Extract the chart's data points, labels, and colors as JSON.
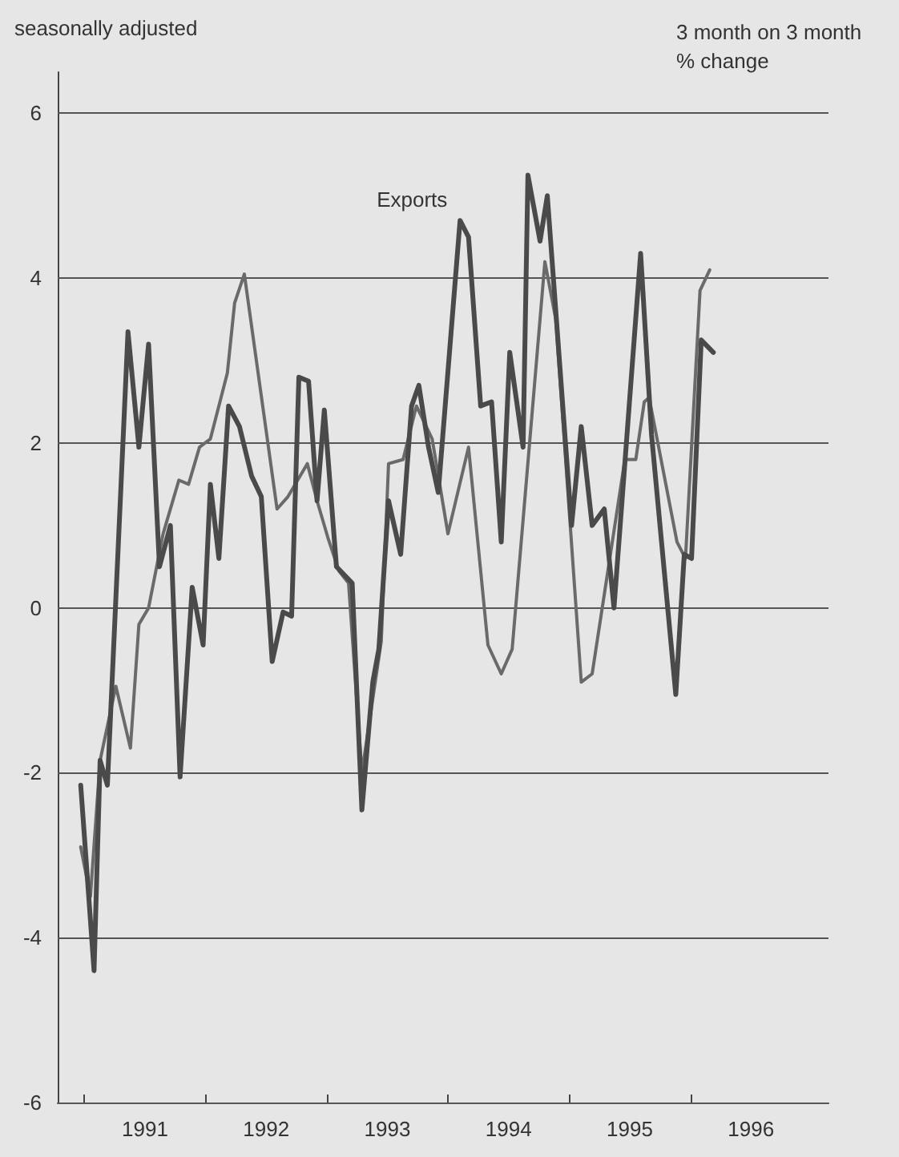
{
  "chart_data": {
    "type": "line",
    "subtitle": "seasonally adjusted",
    "ylabel": "3 month on 3 month % change",
    "series": [
      {
        "name": "Exports",
        "color": "#4a4a4a",
        "x": [
          1990.97,
          1991.08,
          1991.13,
          1991.19,
          1991.36,
          1991.45,
          1991.53,
          1991.62,
          1991.71,
          1991.79,
          1991.89,
          1991.98,
          1992.04,
          1992.11,
          1992.19,
          1992.28,
          1992.38,
          1992.46,
          1992.55,
          1992.64,
          1992.71,
          1992.77,
          1992.85,
          1992.92,
          1992.98,
          1993.08,
          1993.21,
          1993.29,
          1993.38,
          1993.43,
          1993.51,
          1993.61,
          1993.7,
          1993.76,
          1993.84,
          1993.92,
          1994.1,
          1994.17,
          1994.27,
          1994.36,
          1994.44,
          1994.51,
          1994.62,
          1994.66,
          1994.76,
          1994.82,
          1995.02,
          1995.1,
          1995.19,
          1995.29,
          1995.37,
          1995.59,
          1995.68,
          1995.88,
          1995.95,
          1996.01,
          1996.09,
          1996.19
        ],
        "values": [
          -2.15,
          -4.4,
          -1.85,
          -2.15,
          3.35,
          1.95,
          3.2,
          0.5,
          1.0,
          -2.05,
          0.25,
          -0.45,
          1.5,
          0.6,
          2.45,
          2.2,
          1.6,
          1.35,
          -0.65,
          -0.05,
          -0.1,
          2.8,
          2.75,
          1.3,
          2.4,
          0.5,
          0.3,
          -2.45,
          -0.9,
          -0.5,
          1.3,
          0.65,
          2.45,
          2.7,
          1.95,
          1.4,
          4.7,
          4.5,
          2.45,
          2.5,
          0.8,
          3.1,
          1.95,
          5.25,
          4.45,
          5.0,
          1.0,
          2.2,
          1.0,
          1.2,
          0.0,
          4.3,
          2.1,
          -1.05,
          0.65,
          0.6,
          3.25,
          3.1
        ]
      },
      {
        "color": "#6a6a6a",
        "x": [
          1990.97,
          1991.05,
          1991.13,
          1991.26,
          1991.38,
          1991.45,
          1991.53,
          1991.65,
          1991.78,
          1991.86,
          1991.95,
          1992.04,
          1992.18,
          1992.24,
          1992.32,
          1992.59,
          1992.68,
          1992.84,
          1992.92,
          1993.01,
          1993.1,
          1993.18,
          1993.29,
          1993.45,
          1993.51,
          1993.63,
          1993.74,
          1993.87,
          1994.0,
          1994.17,
          1994.33,
          1994.44,
          1994.53,
          1994.8,
          1994.89,
          1995.1,
          1995.19,
          1995.46,
          1995.55,
          1995.62,
          1995.66,
          1995.89,
          1995.96,
          1996.08,
          1996.16
        ],
        "values": [
          -2.9,
          -3.5,
          -1.85,
          -0.95,
          -1.7,
          -0.2,
          0.0,
          0.9,
          1.55,
          1.5,
          1.95,
          2.05,
          2.85,
          3.7,
          4.05,
          1.2,
          1.35,
          1.75,
          1.3,
          0.85,
          0.45,
          0.3,
          -2.0,
          -0.4,
          1.75,
          1.8,
          2.45,
          2.05,
          0.9,
          1.95,
          -0.45,
          -0.8,
          -0.5,
          4.2,
          3.5,
          -0.9,
          -0.8,
          1.8,
          1.8,
          2.5,
          2.55,
          0.8,
          0.6,
          3.85,
          4.1
        ]
      }
    ],
    "xlim": [
      1990.78,
      1997.14
    ],
    "xticks": [
      {
        "value": 1991,
        "label": null
      },
      {
        "value": 1991.5,
        "label": "1991"
      },
      {
        "value": 1992,
        "label": null
      },
      {
        "value": 1992.5,
        "label": "1992"
      },
      {
        "value": 1993,
        "label": null
      },
      {
        "value": 1993.5,
        "label": "1993"
      },
      {
        "value": 1994,
        "label": null
      },
      {
        "value": 1994.5,
        "label": "1994"
      },
      {
        "value": 1995,
        "label": null
      },
      {
        "value": 1995.5,
        "label": "1995"
      },
      {
        "value": 1996,
        "label": null
      },
      {
        "value": 1996.5,
        "label": "1996"
      }
    ],
    "ylim": [
      -6,
      6.5
    ],
    "yticks": [
      -6,
      -4,
      -2,
      0,
      2,
      4,
      6
    ],
    "grid": "y",
    "legend": false,
    "marker": "none",
    "line_style": "solid"
  }
}
